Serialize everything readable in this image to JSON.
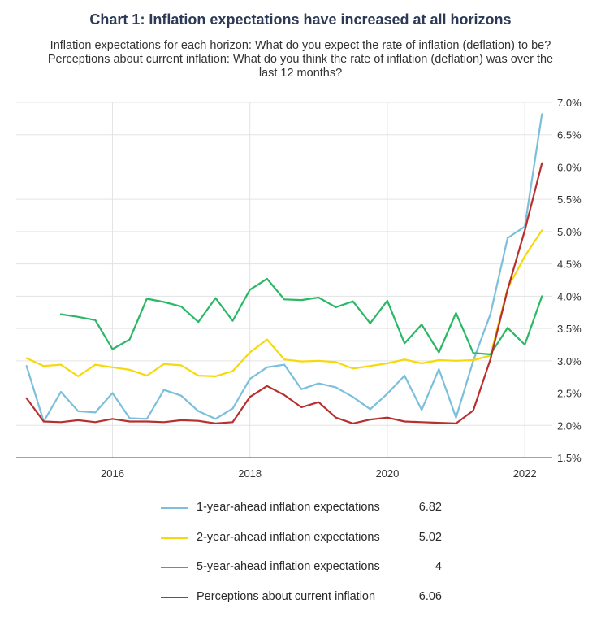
{
  "title": "Chart 1: Inflation expectations have increased at all horizons",
  "subtitle": "Inflation expectations for each horizon: What do you expect the rate of inflation (deflation) to be? Perceptions about current inflation: What do you think the rate of inflation (deflation) was over the last 12 months?",
  "chart_data": {
    "type": "line",
    "title": "Chart 1: Inflation expectations have increased at all horizons",
    "subtitle": "Inflation expectations for each horizon: What do you expect the rate of inflation (deflation) to be? Perceptions about current inflation: What do you think the rate of inflation (deflation) was over the last 12 months?",
    "xlabel": "",
    "ylabel": "",
    "x_ticks": [
      "2016",
      "2018",
      "2020",
      "2022"
    ],
    "x_tick_values": [
      2016,
      2018,
      2020,
      2022
    ],
    "xlim": [
      2014.6,
      2022.4
    ],
    "ylim": [
      1.5,
      7.0
    ],
    "y_ticks": [
      "7.0%",
      "6.5%",
      "6.0%",
      "5.5%",
      "5.0%",
      "4.5%",
      "4.0%",
      "3.5%",
      "3.0%",
      "2.5%",
      "2.0%",
      "1.5%"
    ],
    "y_tick_values": [
      7.0,
      6.5,
      6.0,
      5.5,
      5.0,
      4.5,
      4.0,
      3.5,
      3.0,
      2.5,
      2.0,
      1.5
    ],
    "y_axis_side": "right",
    "grid": true,
    "legend_position": "bottom",
    "x": [
      2014.75,
      2015.0,
      2015.25,
      2015.5,
      2015.75,
      2016.0,
      2016.25,
      2016.5,
      2016.75,
      2017.0,
      2017.25,
      2017.5,
      2017.75,
      2018.0,
      2018.25,
      2018.5,
      2018.75,
      2019.0,
      2019.25,
      2019.5,
      2019.75,
      2020.0,
      2020.25,
      2020.5,
      2020.75,
      2021.0,
      2021.25,
      2021.5,
      2021.75,
      2022.0,
      2022.25
    ],
    "series": [
      {
        "name": "1-year-ahead inflation expectations",
        "color": "#7bbfdb",
        "last_value": "6.82",
        "values": [
          2.92,
          2.06,
          2.52,
          2.22,
          2.2,
          2.5,
          2.11,
          2.1,
          2.55,
          2.46,
          2.22,
          2.1,
          2.26,
          2.72,
          2.9,
          2.94,
          2.56,
          2.65,
          2.59,
          2.44,
          2.25,
          2.49,
          2.77,
          2.24,
          2.87,
          2.12,
          3.0,
          3.72,
          4.9,
          5.08,
          6.82
        ]
      },
      {
        "name": "2-year-ahead inflation expectations",
        "color": "#f5d90a",
        "last_value": "5.02",
        "values": [
          3.04,
          2.92,
          2.94,
          2.76,
          2.94,
          2.9,
          2.86,
          2.77,
          2.95,
          2.93,
          2.77,
          2.76,
          2.84,
          3.13,
          3.33,
          3.02,
          2.99,
          3.0,
          2.98,
          2.88,
          2.92,
          2.96,
          3.02,
          2.96,
          3.01,
          3.0,
          3.01,
          3.08,
          4.12,
          4.62,
          5.02
        ]
      },
      {
        "name": "5-year-ahead inflation expectations",
        "color": "#2ab865",
        "last_value": "4",
        "values": [
          null,
          null,
          3.72,
          3.68,
          3.63,
          3.18,
          3.33,
          3.96,
          3.91,
          3.84,
          3.6,
          3.97,
          3.62,
          4.1,
          4.27,
          3.95,
          3.94,
          3.98,
          3.83,
          3.92,
          3.58,
          3.93,
          3.27,
          3.56,
          3.13,
          3.74,
          3.12,
          3.1,
          3.51,
          3.25,
          4.0
        ]
      },
      {
        "name": "Perceptions about current inflation",
        "color": "#b7302e",
        "last_value": "6.06",
        "values": [
          2.42,
          2.06,
          2.05,
          2.08,
          2.05,
          2.1,
          2.06,
          2.06,
          2.05,
          2.08,
          2.07,
          2.03,
          2.05,
          2.44,
          2.61,
          2.47,
          2.28,
          2.36,
          2.12,
          2.03,
          2.09,
          2.12,
          2.06,
          2.05,
          2.04,
          2.03,
          2.23,
          3.02,
          4.1,
          5.02,
          6.06
        ]
      }
    ]
  }
}
